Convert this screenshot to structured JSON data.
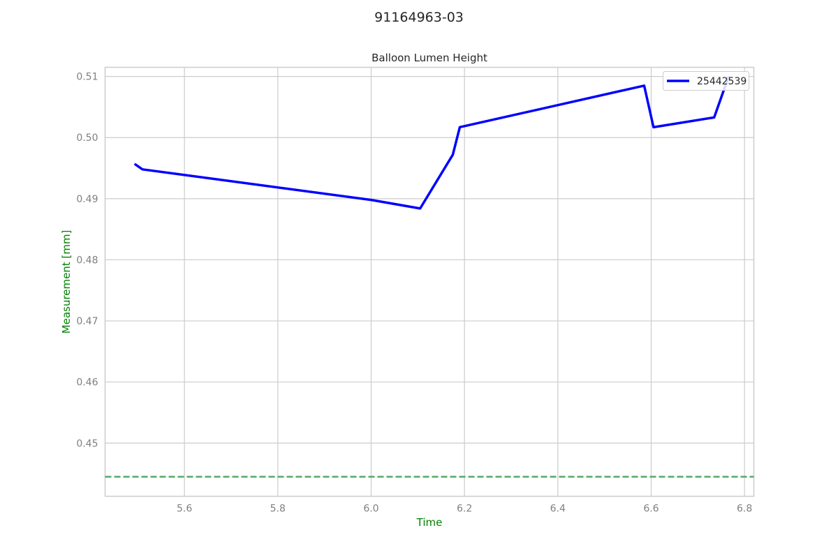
{
  "figure": {
    "title": "91164963-03"
  },
  "chart_data": {
    "type": "line",
    "title": "Balloon Lumen Height",
    "xlabel": "Time",
    "ylabel": "Measurement [mm]",
    "label_color": "#008000",
    "tick_color": "#808080",
    "grid": true,
    "xlim": [
      5.43,
      6.82
    ],
    "ylim": [
      0.4413,
      0.5115
    ],
    "xticks": [
      5.6,
      5.8,
      6.0,
      6.2,
      6.4,
      6.6,
      6.8
    ],
    "xtick_labels": [
      "5.6",
      "5.8",
      "6.0",
      "6.2",
      "6.4",
      "6.6",
      "6.8"
    ],
    "yticks": [
      0.45,
      0.46,
      0.47,
      0.48,
      0.49,
      0.5,
      0.51
    ],
    "ytick_labels": [
      "0.45",
      "0.46",
      "0.47",
      "0.48",
      "0.49",
      "0.50",
      "0.51"
    ],
    "legend_position": "top-right",
    "series": [
      {
        "name": "25442539",
        "color": "#0000ff",
        "points": [
          [
            5.495,
            0.4956
          ],
          [
            5.51,
            0.4948
          ],
          [
            6.0,
            0.4898
          ],
          [
            6.105,
            0.4884
          ],
          [
            6.175,
            0.4972
          ],
          [
            6.19,
            0.5017
          ],
          [
            6.585,
            0.5085
          ],
          [
            6.605,
            0.5017
          ],
          [
            6.735,
            0.5033
          ],
          [
            6.765,
            0.5098
          ]
        ]
      }
    ],
    "reference_lines": [
      {
        "orientation": "horizontal",
        "y": 0.4445,
        "color": "#55a868",
        "style": "dashed"
      }
    ]
  }
}
